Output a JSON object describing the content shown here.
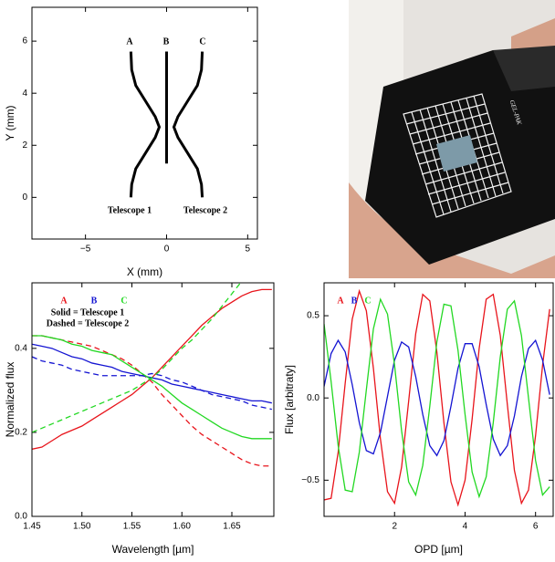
{
  "chart_data": [
    {
      "type": "line",
      "xlabel": "X (mm)",
      "ylabel": "Y (mm)",
      "xlim": [
        -8.3,
        5.6
      ],
      "ylim": [
        -1.6,
        7.3
      ],
      "xticks": [
        {
          "value": -5,
          "label": "−5"
        },
        0,
        5
      ],
      "yticks": [
        0,
        2,
        4,
        6
      ],
      "annotations": [
        "A",
        "B",
        "C",
        "Telescope 1",
        "Telescope 2"
      ],
      "series": [
        {
          "color": "#000000",
          "x": [
            -2.2,
            -2.15,
            -1.9,
            -1.3,
            -0.7,
            -0.45,
            -0.7,
            -1.3,
            -1.9,
            -2.15,
            -2.2
          ],
          "values": [
            5.6,
            4.9,
            4.3,
            3.7,
            3.1,
            2.7,
            2.3,
            1.7,
            1.1,
            0.5,
            0
          ]
        },
        {
          "color": "#000000",
          "x": [
            0,
            0
          ],
          "values": [
            1.3,
            5.6
          ]
        },
        {
          "color": "#000000",
          "x": [
            2.2,
            2.15,
            1.9,
            1.3,
            0.7,
            0.45,
            0.7,
            1.3,
            1.9,
            2.15,
            2.2
          ],
          "values": [
            5.6,
            4.9,
            4.3,
            3.7,
            3.1,
            2.7,
            2.3,
            1.7,
            1.1,
            0.5,
            0
          ]
        }
      ]
    },
    {
      "type": "line",
      "xlabel": "Wavelength [µm]",
      "ylabel": "Normalized flux",
      "xlim": [
        1.45,
        1.692
      ],
      "ylim": [
        0,
        0.556
      ],
      "xticks": [
        1.45,
        {
          "value": 1.5,
          "label": "1.50"
        },
        1.55,
        {
          "value": 1.6,
          "label": "1.60"
        },
        1.65
      ],
      "yticks": [
        {
          "value": 0,
          "label": "0.0"
        },
        0.2,
        0.4
      ],
      "legend_note": [
        "Solid = Telescope 1",
        "Dashed = Telescope 2"
      ],
      "x": [
        1.45,
        1.46,
        1.47,
        1.48,
        1.49,
        1.5,
        1.51,
        1.52,
        1.53,
        1.54,
        1.55,
        1.56,
        1.57,
        1.58,
        1.59,
        1.6,
        1.61,
        1.62,
        1.63,
        1.64,
        1.65,
        1.66,
        1.67,
        1.68,
        1.69
      ],
      "series": [
        {
          "name": "A",
          "color": "#e8141b",
          "values": [
            0.16,
            0.165,
            0.18,
            0.195,
            0.205,
            0.215,
            0.23,
            0.245,
            0.26,
            0.275,
            0.29,
            0.31,
            0.33,
            0.355,
            0.38,
            0.405,
            0.43,
            0.455,
            0.475,
            0.495,
            0.51,
            0.525,
            0.535,
            0.54,
            0.54
          ],
          "values_dashed": [
            0.43,
            0.43,
            0.425,
            0.42,
            0.415,
            0.41,
            0.405,
            0.395,
            0.385,
            0.375,
            0.36,
            0.34,
            0.32,
            0.29,
            0.265,
            0.24,
            0.215,
            0.195,
            0.18,
            0.165,
            0.15,
            0.135,
            0.125,
            0.12,
            0.12
          ]
        },
        {
          "name": "B",
          "color": "#1414d2",
          "values": [
            0.41,
            0.405,
            0.4,
            0.39,
            0.38,
            0.375,
            0.365,
            0.36,
            0.355,
            0.345,
            0.34,
            0.335,
            0.33,
            0.325,
            0.315,
            0.31,
            0.305,
            0.3,
            0.295,
            0.29,
            0.285,
            0.28,
            0.275,
            0.275,
            0.27
          ],
          "values_dashed": [
            0.38,
            0.37,
            0.365,
            0.36,
            0.35,
            0.345,
            0.34,
            0.335,
            0.335,
            0.335,
            0.335,
            0.335,
            0.34,
            0.335,
            0.325,
            0.32,
            0.31,
            0.3,
            0.29,
            0.285,
            0.28,
            0.275,
            0.265,
            0.26,
            0.255
          ]
        },
        {
          "name": "C",
          "color": "#22d822",
          "values": [
            0.43,
            0.43,
            0.425,
            0.42,
            0.41,
            0.405,
            0.395,
            0.39,
            0.385,
            0.37,
            0.355,
            0.34,
            0.325,
            0.31,
            0.29,
            0.27,
            0.255,
            0.24,
            0.225,
            0.21,
            0.2,
            0.19,
            0.185,
            0.185,
            0.185
          ],
          "values_dashed": [
            0.2,
            0.21,
            0.22,
            0.23,
            0.24,
            0.25,
            0.26,
            0.27,
            0.28,
            0.29,
            0.3,
            0.315,
            0.33,
            0.35,
            0.375,
            0.4,
            0.42,
            0.445,
            0.47,
            0.5,
            0.53,
            0.56,
            null,
            null,
            null
          ]
        }
      ]
    },
    {
      "type": "line",
      "xlabel": "OPD [µm]",
      "ylabel": "Flux [arbitraty]",
      "xlim": [
        0,
        6.5
      ],
      "ylim": [
        -0.72,
        0.7
      ],
      "xticks": [
        2,
        4,
        6
      ],
      "yticks": [
        {
          "value": -0.5,
          "label": "−0.5"
        },
        {
          "value": 0,
          "label": "0.0"
        },
        0.5
      ],
      "x": [
        0,
        0.2,
        0.4,
        0.6,
        0.8,
        1,
        1.2,
        1.4,
        1.6,
        1.8,
        2,
        2.2,
        2.4,
        2.6,
        2.8,
        3,
        3.2,
        3.4,
        3.6,
        3.8,
        4,
        4.2,
        4.4,
        4.6,
        4.8,
        5,
        5.2,
        5.4,
        5.6,
        5.8,
        6,
        6.2,
        6.4
      ],
      "series": [
        {
          "name": "A",
          "color": "#e8141b",
          "values": [
            -0.62,
            -0.61,
            -0.33,
            0.09,
            0.48,
            0.65,
            0.53,
            0.18,
            -0.25,
            -0.57,
            -0.64,
            -0.42,
            -0.02,
            0.39,
            0.63,
            0.59,
            0.28,
            -0.15,
            -0.51,
            -0.65,
            -0.5,
            -0.13,
            0.3,
            0.6,
            0.63,
            0.38,
            -0.04,
            -0.44,
            -0.64,
            -0.56,
            -0.23,
            0.2,
            0.54
          ]
        },
        {
          "name": "B",
          "color": "#1414d2",
          "values": [
            0.07,
            0.27,
            0.35,
            0.28,
            0.08,
            -0.15,
            -0.32,
            -0.34,
            -0.21,
            0.01,
            0.23,
            0.34,
            0.31,
            0.13,
            -0.1,
            -0.29,
            -0.35,
            -0.26,
            -0.05,
            0.18,
            0.33,
            0.33,
            0.19,
            -0.04,
            -0.25,
            -0.35,
            -0.29,
            -0.11,
            0.13,
            0.3,
            0.35,
            0.23,
            0.02
          ]
        },
        {
          "name": "C",
          "color": "#22d822",
          "values": [
            0.45,
            0.1,
            -0.29,
            -0.56,
            -0.57,
            -0.33,
            0.05,
            0.42,
            0.6,
            0.51,
            0.2,
            -0.2,
            -0.51,
            -0.59,
            -0.41,
            -0.05,
            0.34,
            0.57,
            0.56,
            0.29,
            -0.1,
            -0.45,
            -0.6,
            -0.48,
            -0.15,
            0.25,
            0.54,
            0.59,
            0.38,
            0,
            -0.38,
            -0.59,
            -0.54
          ]
        }
      ]
    }
  ],
  "photo": {
    "label": "GEL-PAK"
  }
}
